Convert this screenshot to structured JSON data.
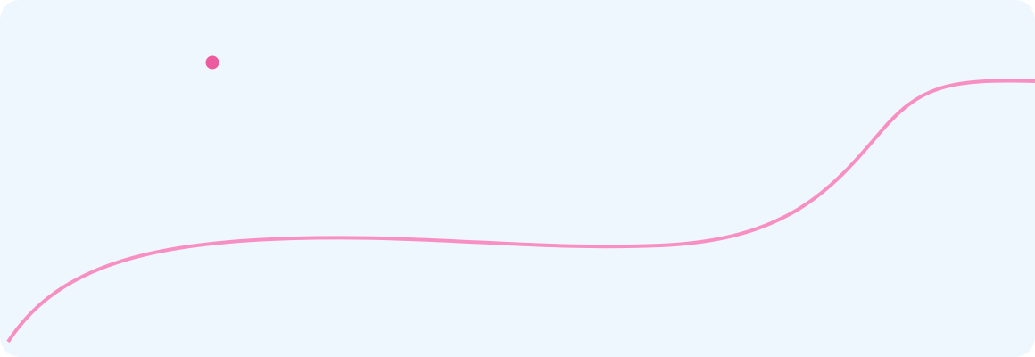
{
  "colors": {
    "background": "#eff7fe",
    "curve": "#f88fc3",
    "marker": "#ec5b9e"
  },
  "elements": {
    "curve": "decorative-wave-curve",
    "marker": "pink-dot"
  }
}
